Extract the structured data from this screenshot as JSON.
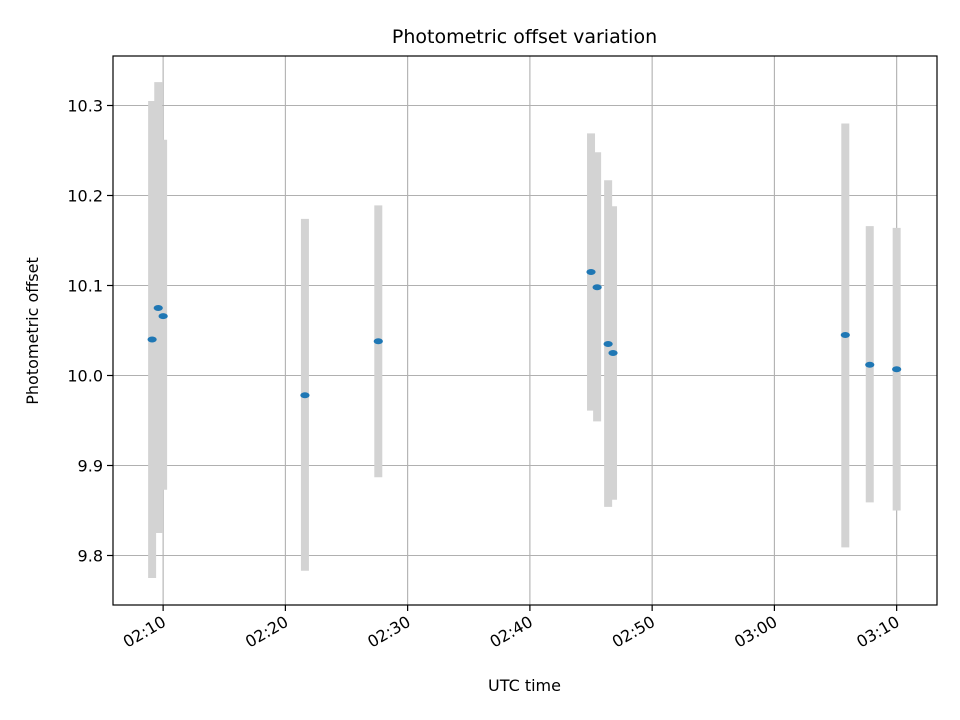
{
  "chart_data": {
    "type": "scatter",
    "title": "Photometric offset variation",
    "xlabel": "UTC time",
    "ylabel": "Photometric offset",
    "grid": true,
    "x_tick_labels": [
      "02:10",
      "02:20",
      "02:30",
      "02:40",
      "02:50",
      "03:00",
      "03:10"
    ],
    "x_tick_minutes": [
      130,
      140,
      150,
      160,
      170,
      180,
      190
    ],
    "xlim_minutes": [
      125.9,
      193.3
    ],
    "y_ticks": [
      9.8,
      9.9,
      10.0,
      10.1,
      10.2,
      10.3
    ],
    "ylim": [
      9.745,
      10.355
    ],
    "colors": {
      "point": "#1f77b4",
      "errorbar": "#d3d3d3",
      "grid": "#b0b0b0"
    },
    "points": [
      {
        "t": "02:09:06",
        "y": 10.04,
        "ylow": 9.775,
        "yhigh": 10.305
      },
      {
        "t": "02:09:36",
        "y": 10.075,
        "ylow": 9.825,
        "yhigh": 10.326
      },
      {
        "t": "02:10:00",
        "y": 10.066,
        "ylow": 9.873,
        "yhigh": 10.262
      },
      {
        "t": "02:21:36",
        "y": 9.978,
        "ylow": 9.783,
        "yhigh": 10.174
      },
      {
        "t": "02:27:36",
        "y": 10.038,
        "ylow": 9.887,
        "yhigh": 10.189
      },
      {
        "t": "02:45:00",
        "y": 10.115,
        "ylow": 9.961,
        "yhigh": 10.269
      },
      {
        "t": "02:45:30",
        "y": 10.098,
        "ylow": 9.949,
        "yhigh": 10.248
      },
      {
        "t": "02:46:24",
        "y": 10.035,
        "ylow": 9.854,
        "yhigh": 10.217
      },
      {
        "t": "02:46:48",
        "y": 10.025,
        "ylow": 9.862,
        "yhigh": 10.188
      },
      {
        "t": "03:05:48",
        "y": 10.045,
        "ylow": 9.809,
        "yhigh": 10.28
      },
      {
        "t": "03:07:48",
        "y": 10.012,
        "ylow": 9.859,
        "yhigh": 10.166
      },
      {
        "t": "03:10:00",
        "y": 10.007,
        "ylow": 9.85,
        "yhigh": 10.164
      }
    ]
  }
}
